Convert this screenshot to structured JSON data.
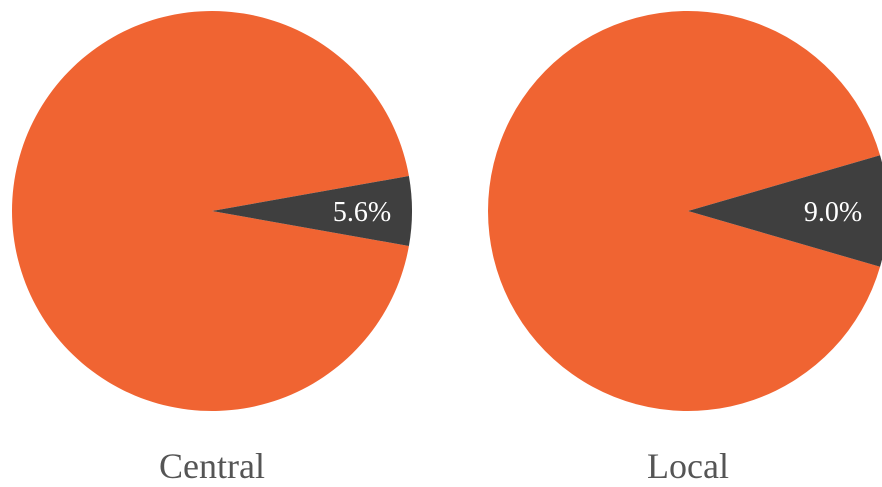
{
  "chart_data": [
    {
      "type": "pie",
      "title": "Central",
      "slices": [
        {
          "label": "",
          "value": 94.4,
          "color": "#F06432"
        },
        {
          "label": "5.6%",
          "value": 5.6,
          "color": "#3F3F3F"
        }
      ]
    },
    {
      "type": "pie",
      "title": "Local",
      "slices": [
        {
          "label": "",
          "value": 91.0,
          "color": "#F06432"
        },
        {
          "label": "9.0%",
          "value": 9.0,
          "color": "#3F3F3F"
        }
      ]
    }
  ]
}
